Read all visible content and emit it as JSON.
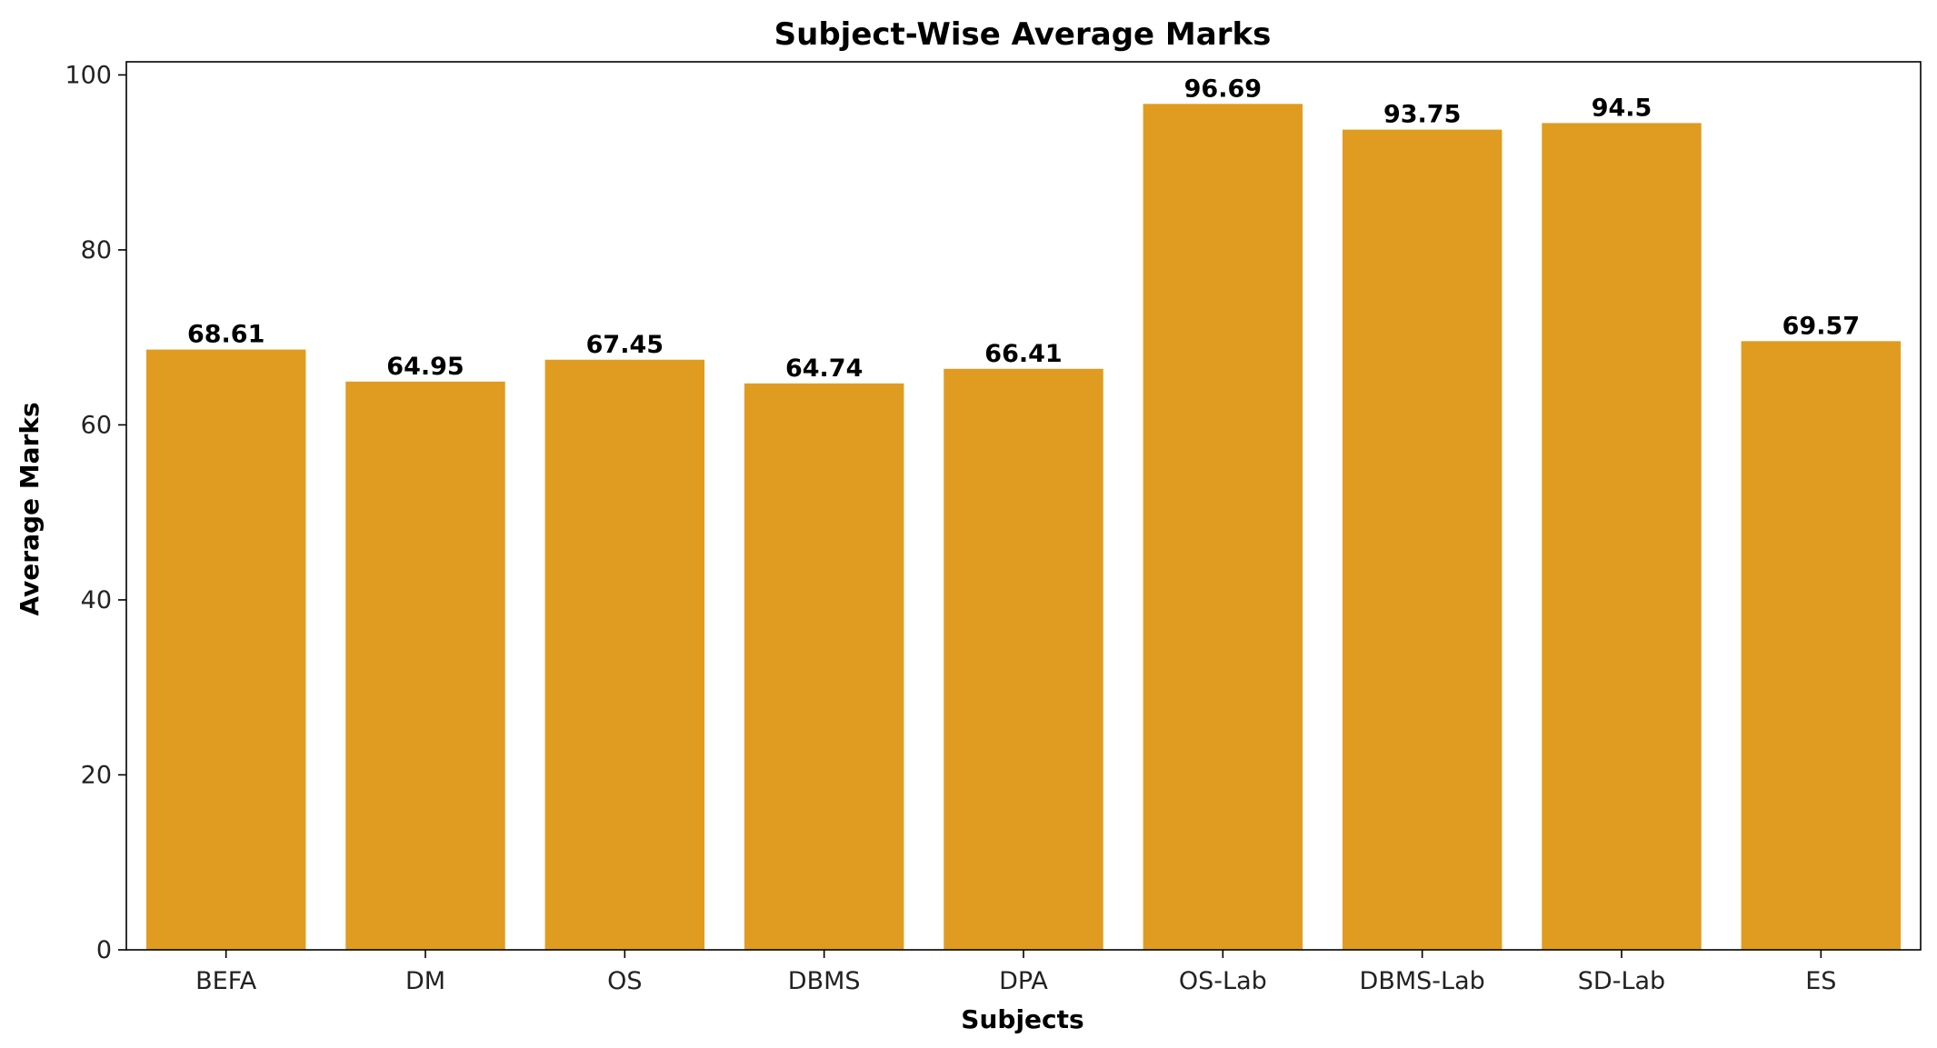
{
  "chart_data": {
    "type": "bar",
    "title": "Subject-Wise Average Marks",
    "xlabel": "Subjects",
    "ylabel": "Average Marks",
    "categories": [
      "BEFA",
      "DM",
      "OS",
      "DBMS",
      "DPA",
      "OS-Lab",
      "DBMS-Lab",
      "SD-Lab",
      "ES"
    ],
    "values": [
      68.61,
      64.95,
      67.45,
      64.74,
      66.41,
      96.69,
      93.75,
      94.5,
      69.57
    ],
    "value_labels": [
      "68.61",
      "64.95",
      "67.45",
      "64.74",
      "66.41",
      "96.69",
      "93.75",
      "94.5",
      "69.57"
    ],
    "ylim": [
      0,
      101.5
    ],
    "yticks": [
      0,
      20,
      40,
      60,
      80,
      100
    ],
    "ytick_labels": [
      "0",
      "20",
      "40",
      "60",
      "80",
      "100"
    ],
    "grid": false,
    "bar_color": "#e09c20",
    "axis_color": "#000000"
  }
}
